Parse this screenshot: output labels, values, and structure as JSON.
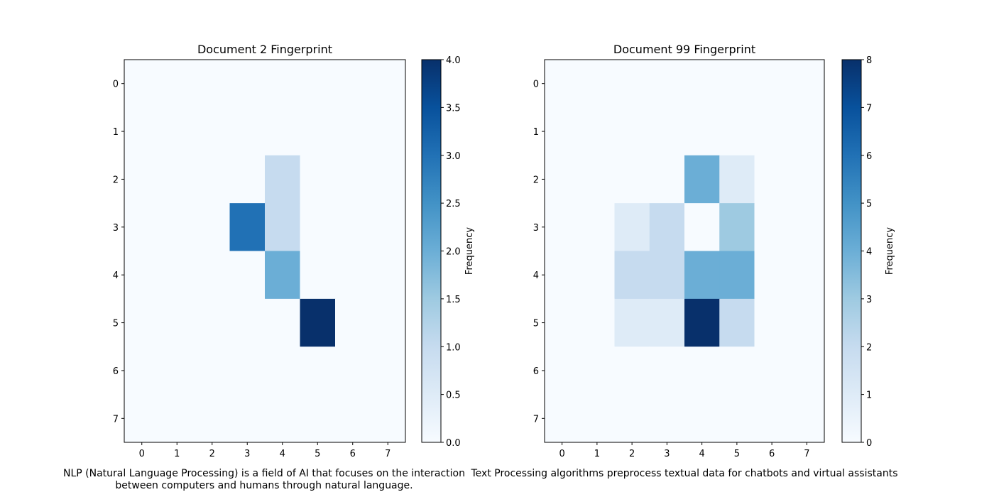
{
  "chart_data": [
    {
      "type": "heatmap",
      "title": "Document 2 Fingerprint",
      "caption": "NLP (Natural Language Processing) is a field of AI that focuses on the interaction between computers and humans through natural language.",
      "x_ticks": [
        0,
        1,
        2,
        3,
        4,
        5,
        6,
        7
      ],
      "y_ticks": [
        0,
        1,
        2,
        3,
        4,
        5,
        6,
        7
      ],
      "colormap": "Blues",
      "colorbar": {
        "label": "Frequency",
        "range": [
          0,
          4
        ],
        "ticks": [
          "0.0",
          "0.5",
          "1.0",
          "1.5",
          "2.0",
          "2.5",
          "3.0",
          "3.5",
          "4.0"
        ]
      },
      "values": [
        [
          0,
          0,
          0,
          0,
          0,
          0,
          0,
          0
        ],
        [
          0,
          0,
          0,
          0,
          0,
          0,
          0,
          0
        ],
        [
          0,
          0,
          0,
          0,
          1,
          0,
          0,
          0
        ],
        [
          0,
          0,
          0,
          3,
          1,
          0,
          0,
          0
        ],
        [
          0,
          0,
          0,
          0,
          2,
          0,
          0,
          0
        ],
        [
          0,
          0,
          0,
          0,
          0,
          4,
          0,
          0
        ],
        [
          0,
          0,
          0,
          0,
          0,
          0,
          0,
          0
        ],
        [
          0,
          0,
          0,
          0,
          0,
          0,
          0,
          0
        ]
      ]
    },
    {
      "type": "heatmap",
      "title": "Document 99 Fingerprint",
      "caption": "Text Processing algorithms preprocess textual data for chatbots and virtual assistants",
      "x_ticks": [
        0,
        1,
        2,
        3,
        4,
        5,
        6,
        7
      ],
      "y_ticks": [
        0,
        1,
        2,
        3,
        4,
        5,
        6,
        7
      ],
      "colormap": "Blues",
      "colorbar": {
        "label": "Frequency",
        "range": [
          0,
          8
        ],
        "ticks": [
          "0",
          "1",
          "2",
          "3",
          "4",
          "5",
          "6",
          "7",
          "8"
        ]
      },
      "values": [
        [
          0,
          0,
          0,
          0,
          0,
          0,
          0,
          0
        ],
        [
          0,
          0,
          0,
          0,
          0,
          0,
          0,
          0
        ],
        [
          0,
          0,
          0,
          0,
          4,
          1,
          0,
          0
        ],
        [
          0,
          0,
          1,
          2,
          0,
          3,
          0,
          0
        ],
        [
          0,
          0,
          2,
          2,
          4,
          4,
          0,
          0
        ],
        [
          0,
          0,
          1,
          1,
          8,
          2,
          0,
          0
        ],
        [
          0,
          0,
          0,
          0,
          0,
          0,
          0,
          0
        ],
        [
          0,
          0,
          0,
          0,
          0,
          0,
          0,
          0
        ]
      ]
    }
  ]
}
